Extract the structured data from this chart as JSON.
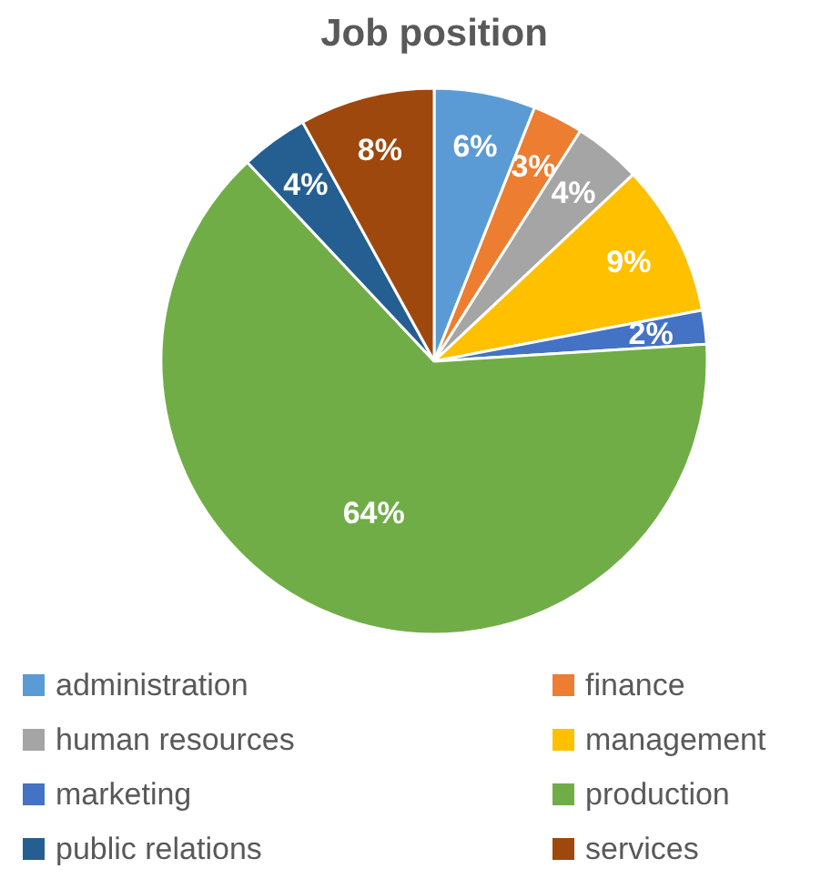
{
  "chart_data": {
    "type": "pie",
    "title": "Job position",
    "categories": [
      "administration",
      "finance",
      "human resources",
      "management",
      "marketing",
      "production",
      "public relations",
      "services"
    ],
    "values": [
      6,
      3,
      4,
      9,
      2,
      64,
      4,
      8
    ],
    "value_labels": [
      "6%",
      "3%",
      "4%",
      "9%",
      "2%",
      "64%",
      "4%",
      "8%"
    ],
    "colors": [
      "#5b9bd5",
      "#ed7d31",
      "#a5a5a5",
      "#ffc000",
      "#4472c4",
      "#70ad47",
      "#255e91",
      "#9e480e"
    ],
    "legend": "bottom"
  }
}
